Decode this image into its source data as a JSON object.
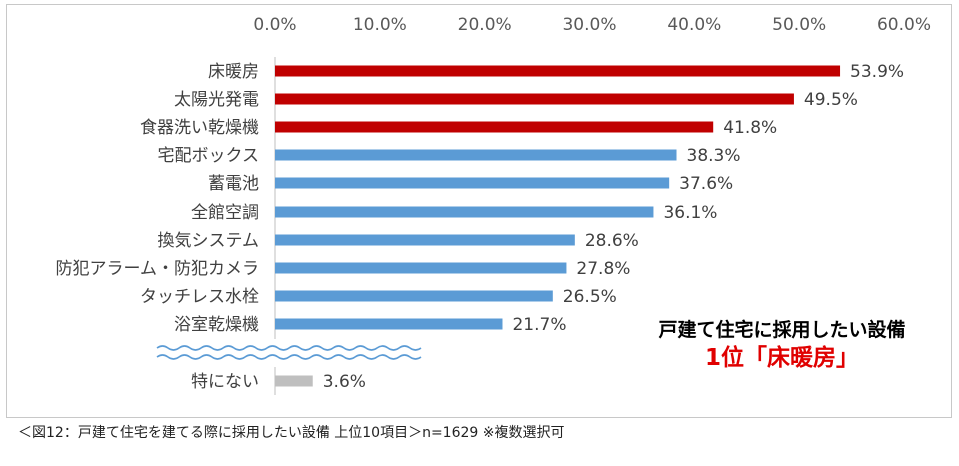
{
  "chart_data": {
    "type": "bar",
    "orientation": "horizontal",
    "categories": [
      "床暖房",
      "太陽光発電",
      "食器洗い乾燥機",
      "宅配ボックス",
      "蓄電池",
      "全館空調",
      "換気システム",
      "防犯アラーム・防犯カメラ",
      "タッチレス水栓",
      "浴室乾燥機",
      "特にない"
    ],
    "values": [
      53.9,
      49.5,
      41.8,
      38.3,
      37.6,
      36.1,
      28.6,
      27.8,
      26.5,
      21.7,
      3.6
    ],
    "data_labels": [
      "53.9%",
      "49.5%",
      "41.8%",
      "38.3%",
      "37.6%",
      "36.1%",
      "28.6%",
      "27.8%",
      "26.5%",
      "21.7%",
      "3.6%"
    ],
    "xticks": [
      "0.0%",
      "10.0%",
      "20.0%",
      "30.0%",
      "40.0%",
      "50.0%",
      "60.0%"
    ],
    "xlim": [
      0,
      60
    ],
    "axis_break_before_last": true,
    "colors": {
      "top3": "#c00000",
      "others": "#5b9bd5",
      "none": "#bfbfbf",
      "wave": "#5b9bd5",
      "axis": "#bfbfbf"
    }
  },
  "callout": {
    "line1": "戸建て住宅に採用したい設備",
    "line2": "1位「床暖房」"
  },
  "caption": "＜図12：戸建て住宅を建てる際に採用したい設備 上位10項目＞n=1629 ※複数選択可"
}
